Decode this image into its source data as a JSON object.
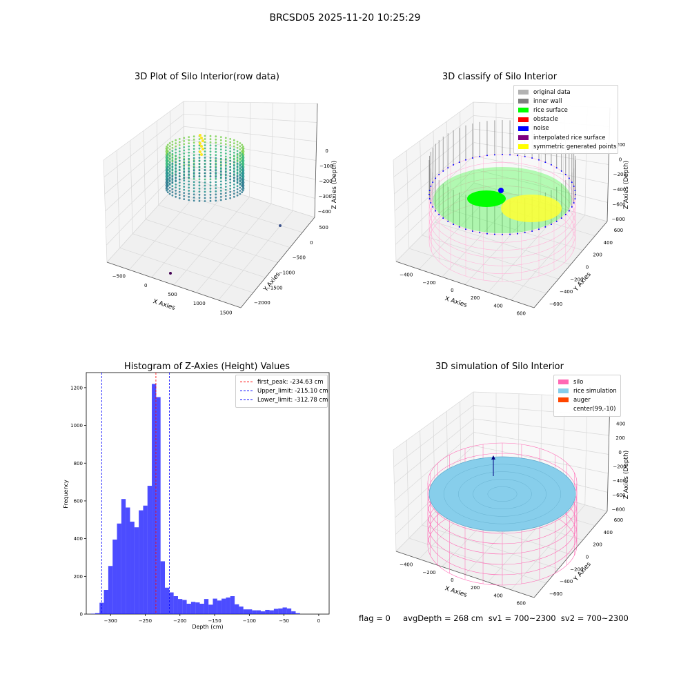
{
  "figure": {
    "suptitle": "BRCSD05 2025-11-20 10:25:29",
    "footer": "flag = 0     avgDepth = 268 cm  sv1 = 700~2300  sv2 = 700~2300"
  },
  "chart_data": [
    {
      "type": "scatter",
      "subtype": "3d",
      "title": "3D Plot of Silo Interior(row data)",
      "xlabel": "X Axies",
      "ylabel": "Y Axies",
      "zlabel": "Z Axies (Depth)",
      "x_ticks": [
        "−500",
        "0",
        "500",
        "1000",
        "1500"
      ],
      "y_ticks": [
        "−2000",
        "−1500",
        "−1000",
        "−500",
        "0",
        "500"
      ],
      "z_ticks": [
        "−400",
        "−300",
        "−200",
        "−100",
        "0"
      ],
      "xlim": [
        -700,
        1700
      ],
      "ylim": [
        -2100,
        700
      ],
      "zlim": [
        -480,
        20
      ],
      "colormap": "viridis",
      "outliers": [
        {
          "x": 1650,
          "y": 500,
          "z": -450
        },
        {
          "x": -600,
          "y": -1700,
          "z": -230
        }
      ],
      "grid": true
    },
    {
      "type": "scatter",
      "subtype": "3d",
      "title": "3D classify of Silo Interior",
      "xlabel": "X Axies",
      "ylabel": "Y Axies",
      "zlabel": "Z Axies (Depth)",
      "x_ticks": [
        "−400",
        "−200",
        "0",
        "200",
        "400",
        "600"
      ],
      "y_ticks": [
        "−600",
        "−400",
        "−200",
        "0",
        "200",
        "400",
        "600"
      ],
      "z_ticks": [
        "−800",
        "−600",
        "−400",
        "−200",
        "0",
        "200"
      ],
      "legend": [
        {
          "label": "original data",
          "color": "#b3b3b3"
        },
        {
          "label": "inner wall",
          "color": "#808080"
        },
        {
          "label": "rice surface",
          "color": "#00ff00"
        },
        {
          "label": "obstacle",
          "color": "#ff0000"
        },
        {
          "label": "noise",
          "color": "#0000ff"
        },
        {
          "label": "interpolated rice surface",
          "color": "#800080"
        },
        {
          "label": "symmetric generated points",
          "color": "#ffff00"
        }
      ],
      "legend_position": "top-right",
      "grid": true
    },
    {
      "type": "bar",
      "subtype": "histogram",
      "title": "Histogram of Z-Axies (Height) Values",
      "xlabel": "Depth (cm)",
      "ylabel": "Frequency",
      "xlim": [
        -335,
        15
      ],
      "ylim": [
        0,
        1280
      ],
      "x_ticks": [
        -300,
        -250,
        -200,
        -150,
        -100,
        -50,
        0
      ],
      "y_ticks": [
        0,
        200,
        400,
        600,
        800,
        1000,
        1200
      ],
      "x_tick_labels": [
        "−300",
        "−250",
        "−200",
        "−150",
        "−100",
        "−50",
        "0"
      ],
      "y_tick_labels": [
        "0",
        "200",
        "400",
        "600",
        "800",
        "1000",
        "1200"
      ],
      "bar_color": "#0000ff",
      "bar_opacity": 0.7,
      "bin_width": 6.28,
      "bin_start": -328.4,
      "values": [
        2,
        5,
        60,
        128,
        255,
        395,
        480,
        610,
        565,
        490,
        460,
        550,
        575,
        680,
        1220,
        1150,
        280,
        140,
        115,
        95,
        80,
        75,
        55,
        65,
        62,
        55,
        80,
        50,
        82,
        72,
        82,
        88,
        95,
        52,
        40,
        25,
        25,
        20,
        20,
        15,
        22,
        20,
        28,
        30,
        35,
        30,
        15,
        5
      ],
      "vlines": [
        {
          "label": "first_peak: -234.63 cm",
          "x": -234.63,
          "color": "#ff0000"
        },
        {
          "label": "Upper_limit: -215.10 cm",
          "x": -215.1,
          "color": "#0000ff"
        },
        {
          "label": "Lower_limit: -312.78 cm",
          "x": -312.78,
          "color": "#0000ff"
        }
      ],
      "legend_position": "top-right"
    },
    {
      "type": "scatter",
      "subtype": "3d",
      "title": "3D simulation of Silo Interior",
      "xlabel": "X Axies",
      "ylabel": "Y Axies",
      "zlabel": "Z Axies (Depth)",
      "x_ticks": [
        "−400",
        "−200",
        "0",
        "200",
        "400",
        "600"
      ],
      "y_ticks": [
        "−600",
        "−400",
        "−200",
        "0",
        "200",
        "400",
        "600"
      ],
      "z_ticks": [
        "−800",
        "−600",
        "−400",
        "−200",
        "0",
        "200",
        "400"
      ],
      "legend": [
        {
          "label": "silo",
          "color": "#ff69b4"
        },
        {
          "label": "rice simulation",
          "color": "#87ceeb"
        },
        {
          "label": "auger",
          "color": "#ff4500"
        },
        {
          "label": "center(99,-10)",
          "color": "#ffffff"
        }
      ],
      "legend_position": "top-right",
      "grid": true
    }
  ]
}
